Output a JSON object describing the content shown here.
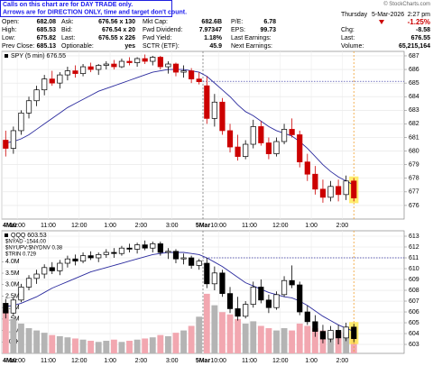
{
  "header": {
    "notice": [
      "Calls on this chart are for DAY TRADE only.",
      "Arrows are for DIRECTION ONLY, time and target don't count."
    ],
    "columns": [
      [
        {
          "label": "Open:",
          "value": "682.08"
        },
        {
          "label": "High:",
          "value": "685.53"
        },
        {
          "label": "Low:",
          "value": "675.82"
        },
        {
          "label": "Prev Close:",
          "value": "685.13"
        }
      ],
      [
        {
          "label": "Ask:",
          "value": "676.56 x 130"
        },
        {
          "label": "Bid:",
          "value": "676.54 x 20"
        },
        {
          "label": "Last:",
          "value": "676.55 x 226"
        },
        {
          "label": "Optionable:",
          "value": "yes"
        }
      ],
      [
        {
          "label": "Mkt Cap:",
          "value": "682.6B"
        },
        {
          "label": "Fwd Dividend:",
          "value": "7.97347"
        },
        {
          "label": "Fwd Yield:",
          "value": "1.18%"
        },
        {
          "label": "SCTR (ETF):",
          "value": "45.9"
        }
      ],
      [
        {
          "label": "P/E:",
          "value": "6.78"
        },
        {
          "label": "EPS:",
          "value": "99.73"
        },
        {
          "label": "Last Earnings:"
        },
        {
          "label": "Next Earnings:"
        }
      ]
    ],
    "copyright": "© StockCharts.com",
    "timestamp": [
      "Thursday",
      "5-Mar-2026",
      "2:27 pm"
    ],
    "change_pct": "-1.25%",
    "side": [
      {
        "label": "Chg:",
        "value": "-8.58"
      },
      {
        "label": "Last:",
        "value": "676.55"
      },
      {
        "label": "Volume:",
        "value": "65,215,164"
      }
    ]
  },
  "chart_data": [
    {
      "type": "candlestick",
      "title": "SPY (5 min) 676.55",
      "categories": [
        "4Mar",
        null,
        "10:00",
        null,
        null,
        null,
        "11:00",
        null,
        null,
        null,
        "12:00",
        null,
        null,
        null,
        "1:00",
        null,
        null,
        null,
        "2:00",
        null,
        null,
        null,
        "3:00",
        null,
        null,
        null,
        "5Mar",
        null,
        "10:00",
        null,
        null,
        null,
        "11:00",
        null,
        null,
        null,
        "12:00",
        null,
        null,
        null,
        "1:00",
        null,
        null,
        null,
        "2:00",
        null
      ],
      "open": [
        680.8,
        680.2,
        681.5,
        682.8,
        683.7,
        684.5,
        685.3,
        685.0,
        685.6,
        685.9,
        685.7,
        686.2,
        686.0,
        686.3,
        686.4,
        686.2,
        686.6,
        686.5,
        686.8,
        686.6,
        686.9,
        686.2,
        686.4,
        685.8,
        685.9,
        685.3,
        684.8,
        682.4,
        683.6,
        681.5,
        680.3,
        679.6,
        680.5,
        681.8,
        680.6,
        679.8,
        680.7,
        681.6,
        681.2,
        679.2,
        678.3,
        677.2,
        676.6,
        677.4,
        676.8,
        677.8
      ],
      "high": [
        681.5,
        681.8,
        683.0,
        684.0,
        684.8,
        685.6,
        685.9,
        685.8,
        686.2,
        686.3,
        686.4,
        686.5,
        686.4,
        686.6,
        686.7,
        686.8,
        686.9,
        686.9,
        687.1,
        687.0,
        687.0,
        686.6,
        686.5,
        686.3,
        686.1,
        685.8,
        685.5,
        684.2,
        683.9,
        682.0,
        681.2,
        680.8,
        682.3,
        682.2,
        681.0,
        681.0,
        682.0,
        682.4,
        681.5,
        679.8,
        678.9,
        677.9,
        677.8,
        677.9,
        678.2,
        678.0
      ],
      "low": [
        679.6,
        679.8,
        681.2,
        682.4,
        683.3,
        684.1,
        684.8,
        684.6,
        685.2,
        685.4,
        685.5,
        685.8,
        685.6,
        686.0,
        686.0,
        686.1,
        686.3,
        686.2,
        686.4,
        686.3,
        686.0,
        685.7,
        685.5,
        685.4,
        685.0,
        684.9,
        682.0,
        681.8,
        681.2,
        679.9,
        679.3,
        679.4,
        680.2,
        680.4,
        679.4,
        679.6,
        680.5,
        681.0,
        678.8,
        677.8,
        676.8,
        676.2,
        676.3,
        676.3,
        676.4,
        676.3
      ],
      "close": [
        680.2,
        681.5,
        682.8,
        683.7,
        684.5,
        685.3,
        685.0,
        685.6,
        685.9,
        685.7,
        686.2,
        686.0,
        686.3,
        686.4,
        686.2,
        686.6,
        686.5,
        686.8,
        686.6,
        686.9,
        686.2,
        686.4,
        685.8,
        685.9,
        685.3,
        685.1,
        682.4,
        683.6,
        681.5,
        680.3,
        679.6,
        680.5,
        681.8,
        680.6,
        679.8,
        680.7,
        681.6,
        681.2,
        679.2,
        678.3,
        677.2,
        676.6,
        677.4,
        676.8,
        677.8,
        676.55
      ],
      "overlay": {
        "color": "#2b2b9e",
        "values": [
          680.6,
          680.7,
          680.9,
          681.2,
          681.6,
          682.0,
          682.4,
          682.8,
          683.2,
          683.5,
          683.8,
          684.1,
          684.4,
          684.6,
          684.8,
          685.0,
          685.2,
          685.4,
          685.6,
          685.8,
          685.9,
          686.0,
          686.0,
          686.0,
          685.9,
          685.8,
          685.5,
          685.0,
          684.5,
          684.0,
          683.4,
          682.9,
          682.6,
          682.2,
          681.8,
          681.5,
          681.3,
          681.1,
          680.7,
          680.2,
          679.6,
          679.0,
          678.5,
          678.1,
          677.8,
          677.5
        ]
      },
      "reference_line": 685.13,
      "up_color": "#000000",
      "down_color": "#cc0000",
      "ylim": [
        675,
        687.33
      ],
      "yticks": [
        676,
        677,
        678,
        679,
        680,
        681,
        682,
        683,
        684,
        685,
        686,
        687
      ],
      "grid": true
    },
    {
      "type": "candlestick",
      "title": "QQQ 603.53",
      "indicators": [
        "$NYAD -1544.00",
        "$NYUPV:$NYDNV 0.38",
        "$TRIN 0.729"
      ],
      "categories": [
        "4Mar",
        null,
        "10:00",
        null,
        null,
        null,
        "11:00",
        null,
        null,
        null,
        "12:00",
        null,
        null,
        null,
        "1:00",
        null,
        null,
        null,
        "2:00",
        null,
        null,
        null,
        "3:00",
        null,
        null,
        null,
        "5Mar",
        null,
        "10:00",
        null,
        null,
        null,
        "11:00",
        null,
        null,
        null,
        "12:00",
        null,
        null,
        null,
        "1:00",
        null,
        null,
        null,
        "2:00",
        null
      ],
      "open": [
        606.8,
        605.9,
        607.1,
        608.3,
        609.1,
        609.5,
        610.1,
        609.8,
        610.5,
        610.9,
        610.7,
        611.2,
        611.0,
        611.3,
        611.5,
        611.4,
        611.9,
        611.8,
        612.2,
        611.9,
        612.3,
        611.5,
        611.6,
        610.9,
        611.0,
        610.3,
        610.5,
        608.6,
        609.6,
        607.7,
        606.3,
        605.6,
        606.7,
        608.3,
        607.1,
        606.4,
        607.6,
        608.9,
        608.5,
        606.0,
        605.1,
        604.2,
        603.5,
        604.3,
        603.6,
        604.6
      ],
      "high": [
        607.2,
        607.4,
        608.6,
        609.4,
        609.9,
        610.4,
        610.6,
        610.8,
        611.2,
        611.3,
        611.5,
        611.6,
        611.5,
        611.8,
        611.9,
        612.1,
        612.3,
        612.4,
        612.6,
        612.5,
        612.5,
        611.9,
        611.8,
        611.4,
        611.2,
        610.9,
        611.0,
        610.2,
        609.9,
        608.3,
        607.4,
        607.0,
        608.8,
        609.0,
        607.6,
        607.9,
        609.3,
        610.3,
        608.8,
        606.6,
        605.7,
        604.8,
        604.7,
        604.8,
        605.0,
        604.9
      ],
      "low": [
        605.4,
        605.6,
        606.9,
        608.0,
        608.6,
        609.1,
        609.5,
        609.4,
        610.1,
        610.3,
        610.5,
        610.8,
        610.6,
        611.0,
        611.0,
        611.2,
        611.5,
        611.4,
        611.7,
        611.5,
        611.2,
        610.9,
        610.5,
        610.4,
        610.0,
        609.9,
        608.2,
        608.0,
        607.4,
        605.9,
        605.2,
        605.4,
        606.4,
        606.8,
        605.9,
        606.2,
        607.4,
        608.2,
        605.7,
        604.8,
        603.7,
        603.1,
        603.2,
        603.0,
        603.3,
        603.2
      ],
      "close": [
        605.9,
        607.1,
        608.3,
        609.1,
        609.5,
        610.1,
        609.8,
        610.5,
        610.9,
        610.7,
        611.2,
        611.0,
        611.3,
        611.5,
        611.4,
        611.9,
        611.8,
        612.2,
        611.9,
        612.3,
        611.5,
        611.6,
        610.9,
        611.0,
        610.3,
        610.7,
        608.6,
        609.6,
        607.7,
        606.3,
        605.6,
        606.7,
        608.3,
        607.1,
        606.4,
        607.6,
        608.9,
        608.5,
        606.0,
        605.1,
        604.2,
        603.5,
        604.3,
        603.6,
        604.6,
        603.53
      ],
      "overlay": {
        "color": "#2b2b9e",
        "values": [
          606.5,
          606.6,
          606.8,
          607.1,
          607.4,
          607.8,
          608.2,
          608.5,
          608.8,
          609.1,
          609.4,
          609.7,
          609.9,
          610.1,
          610.3,
          610.5,
          610.7,
          610.9,
          611.1,
          611.3,
          611.4,
          611.5,
          611.5,
          611.5,
          611.4,
          611.3,
          611.0,
          610.6,
          610.2,
          609.7,
          609.2,
          608.7,
          608.4,
          608.1,
          607.8,
          607.6,
          607.4,
          607.3,
          607.0,
          606.6,
          606.1,
          605.6,
          605.2,
          604.8,
          604.5,
          604.2
        ]
      },
      "reference_line": 611,
      "up_color": "#000000",
      "down_color": "#000000",
      "volume": {
        "axis": "y2",
        "up_color": "#b4b4b4",
        "down_color": "#f2a7b0",
        "values": [
          1900000,
          1500000,
          1300000,
          1100000,
          1000000,
          900000,
          800000,
          750000,
          700000,
          650000,
          600000,
          550000,
          500000,
          550000,
          600000,
          500000,
          550000,
          600000,
          650000,
          700000,
          800000,
          750000,
          900000,
          1000000,
          1200000,
          1600000,
          2600000,
          2100000,
          1800000,
          1700000,
          1500000,
          1300000,
          1400000,
          1200000,
          1100000,
          1000000,
          1100000,
          1000000,
          1300000,
          1200000,
          1100000,
          1000000,
          900000,
          950000,
          900000,
          850000
        ]
      },
      "ylim": [
        602.17,
        613.5
      ],
      "yticks": [
        603,
        604,
        605,
        606,
        607,
        608,
        609,
        610,
        611,
        612,
        613
      ],
      "y2lim": [
        0,
        5350000
      ],
      "y2ticks": [
        {
          "value": 500000,
          "label": "500K"
        },
        {
          "value": 1000000,
          "label": "1.0M"
        },
        {
          "value": 1500000,
          "label": "1.5M"
        },
        {
          "value": 2000000,
          "label": "2.0M"
        },
        {
          "value": 2500000,
          "label": "2.5M"
        },
        {
          "value": 3000000,
          "label": "3.0M"
        },
        {
          "value": 3500000,
          "label": "3.5M"
        },
        {
          "value": 4000000,
          "label": "4.0M"
        }
      ],
      "grid": true
    }
  ]
}
